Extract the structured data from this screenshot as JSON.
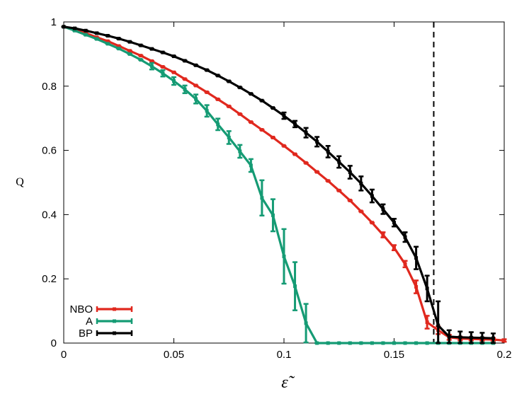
{
  "chart_data": {
    "type": "line",
    "xlabel": "ε̃",
    "ylabel": "Q",
    "xlim": [
      0,
      0.2
    ],
    "ylim": [
      0,
      1
    ],
    "x_ticks": [
      "0",
      "0.05",
      "0.1",
      "0.15",
      "0.2"
    ],
    "y_ticks": [
      "0",
      "0.2",
      "0.4",
      "0.6",
      "0.8",
      "1"
    ],
    "grid": false,
    "legend_position": "bottom-left",
    "reference_line": {
      "style": "dashed",
      "x": 0.168,
      "color": "#000000"
    },
    "series": [
      {
        "name": "NBO",
        "color": "#e0281e",
        "x": [
          0,
          0.005,
          0.01,
          0.015,
          0.02,
          0.025,
          0.03,
          0.035,
          0.04,
          0.045,
          0.05,
          0.055,
          0.06,
          0.065,
          0.07,
          0.075,
          0.08,
          0.085,
          0.09,
          0.095,
          0.1,
          0.105,
          0.11,
          0.115,
          0.12,
          0.125,
          0.13,
          0.135,
          0.14,
          0.145,
          0.15,
          0.155,
          0.16,
          0.165,
          0.17,
          0.175,
          0.18,
          0.185,
          0.19,
          0.195,
          0.2
        ],
        "y": [
          0.985,
          0.975,
          0.965,
          0.952,
          0.94,
          0.925,
          0.91,
          0.895,
          0.878,
          0.86,
          0.843,
          0.822,
          0.802,
          0.781,
          0.759,
          0.737,
          0.713,
          0.688,
          0.664,
          0.64,
          0.614,
          0.588,
          0.561,
          0.533,
          0.505,
          0.475,
          0.444,
          0.41,
          0.375,
          0.337,
          0.297,
          0.246,
          0.175,
          0.065,
          0.04,
          0.018,
          0.014,
          0.013,
          0.012,
          0.011,
          0.008
        ],
        "err": [
          0,
          0,
          0,
          0,
          0,
          0,
          0,
          0,
          0,
          0,
          0,
          0,
          0,
          0,
          0,
          0,
          0,
          0,
          0,
          0,
          0,
          0,
          0,
          0,
          0,
          0,
          0,
          0,
          0,
          0.008,
          0.008,
          0.01,
          0.02,
          0.02,
          0.012,
          0.008,
          0.006,
          0.005,
          0.005,
          0.005,
          0.004
        ]
      },
      {
        "name": "A",
        "color": "#159b74",
        "x": [
          0,
          0.005,
          0.01,
          0.015,
          0.02,
          0.025,
          0.03,
          0.035,
          0.04,
          0.045,
          0.05,
          0.055,
          0.06,
          0.065,
          0.07,
          0.075,
          0.08,
          0.085,
          0.09,
          0.095,
          0.1,
          0.105,
          0.11,
          0.115,
          0.12,
          0.125,
          0.13,
          0.135,
          0.14,
          0.145,
          0.15,
          0.155,
          0.16,
          0.165,
          0.17,
          0.175,
          0.18,
          0.185,
          0.19,
          0.195
        ],
        "y": [
          0.985,
          0.973,
          0.96,
          0.947,
          0.932,
          0.917,
          0.9,
          0.882,
          0.862,
          0.84,
          0.816,
          0.79,
          0.76,
          0.723,
          0.681,
          0.64,
          0.597,
          0.553,
          0.452,
          0.398,
          0.27,
          0.177,
          0.062,
          0.0,
          0.0,
          0.0,
          0.0,
          0.0,
          0.0,
          0.0,
          0.0,
          0.0,
          0.0,
          0.0,
          0.0,
          0.0,
          0.0,
          0.0,
          0.0,
          0.0
        ],
        "err": [
          0,
          0,
          0,
          0,
          0,
          0,
          0,
          0,
          0.01,
          0.01,
          0.012,
          0.012,
          0.014,
          0.018,
          0.018,
          0.02,
          0.02,
          0.02,
          0.055,
          0.05,
          0.085,
          0.075,
          0.06,
          0,
          0,
          0,
          0,
          0,
          0,
          0,
          0,
          0,
          0,
          0,
          0,
          0,
          0,
          0,
          0,
          0
        ]
      },
      {
        "name": "BP",
        "color": "#000000",
        "x": [
          0,
          0.005,
          0.01,
          0.015,
          0.02,
          0.025,
          0.03,
          0.035,
          0.04,
          0.045,
          0.05,
          0.055,
          0.06,
          0.065,
          0.07,
          0.075,
          0.08,
          0.085,
          0.09,
          0.095,
          0.1,
          0.105,
          0.11,
          0.115,
          0.12,
          0.125,
          0.13,
          0.135,
          0.14,
          0.145,
          0.15,
          0.155,
          0.16,
          0.165,
          0.17,
          0.175,
          0.18,
          0.185,
          0.19,
          0.195
        ],
        "y": [
          0.985,
          0.98,
          0.973,
          0.965,
          0.957,
          0.948,
          0.938,
          0.927,
          0.916,
          0.905,
          0.893,
          0.879,
          0.865,
          0.85,
          0.833,
          0.815,
          0.796,
          0.776,
          0.755,
          0.732,
          0.708,
          0.682,
          0.655,
          0.627,
          0.596,
          0.564,
          0.532,
          0.497,
          0.458,
          0.417,
          0.375,
          0.33,
          0.265,
          0.17,
          0.055,
          0.02,
          0.018,
          0.017,
          0.016,
          0.015
        ],
        "err": [
          0,
          0,
          0,
          0,
          0,
          0,
          0,
          0,
          0,
          0,
          0,
          0,
          0,
          0,
          0,
          0,
          0,
          0,
          0,
          0,
          0.01,
          0.01,
          0.015,
          0.015,
          0.018,
          0.018,
          0.02,
          0.022,
          0.02,
          0.015,
          0.012,
          0.015,
          0.035,
          0.04,
          0.075,
          0.02,
          0.018,
          0.017,
          0.016,
          0.015
        ]
      }
    ]
  }
}
